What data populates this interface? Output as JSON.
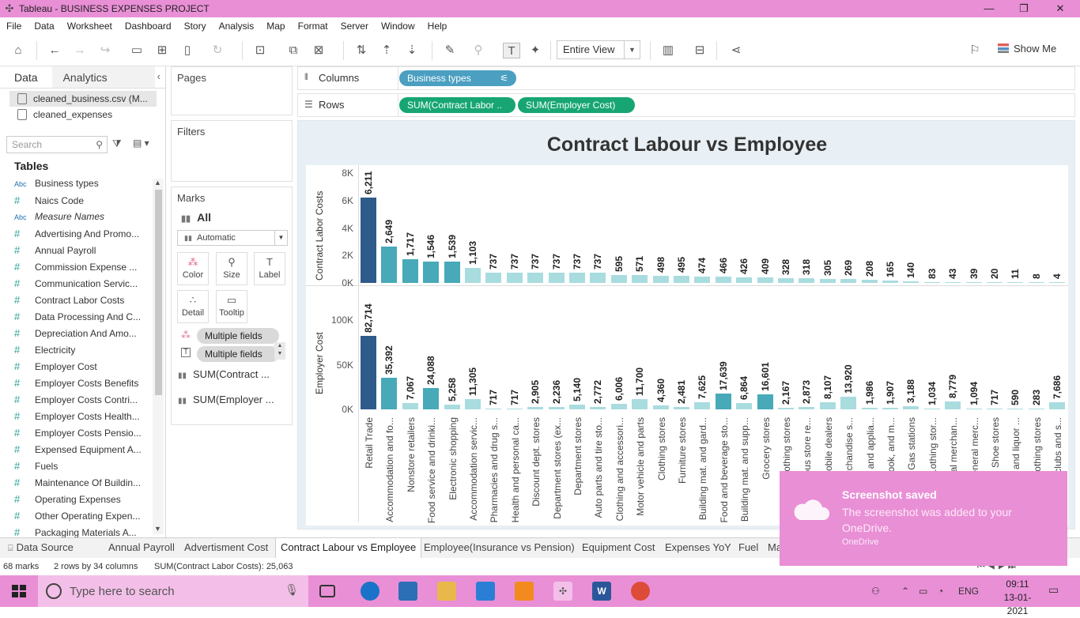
{
  "window": {
    "title": "Tableau - BUSINESS EXPENSES PROJECT"
  },
  "menu": [
    "File",
    "Data",
    "Worksheet",
    "Dashboard",
    "Story",
    "Analysis",
    "Map",
    "Format",
    "Server",
    "Window",
    "Help"
  ],
  "toolbar": {
    "fit_label": "Entire View",
    "show_me_label": "Show Me"
  },
  "data_panel": {
    "tab_data": "Data",
    "tab_analytics": "Analytics",
    "datasources": [
      "cleaned_business.csv (M...",
      "cleaned_expenses"
    ],
    "search_placeholder": "Search",
    "tables_heading": "Tables",
    "fields": [
      {
        "type": "Abc",
        "name": "Business types"
      },
      {
        "type": "#",
        "name": "Naics Code"
      },
      {
        "type": "Abc",
        "name": "Measure Names"
      },
      {
        "type": "#",
        "name": "Advertising And Promo..."
      },
      {
        "type": "#",
        "name": "Annual Payroll"
      },
      {
        "type": "#",
        "name": "Commission Expense ..."
      },
      {
        "type": "#",
        "name": "Communication Servic..."
      },
      {
        "type": "#",
        "name": "Contract Labor Costs"
      },
      {
        "type": "#",
        "name": "Data Processing And C..."
      },
      {
        "type": "#",
        "name": "Depreciation And Amo..."
      },
      {
        "type": "#",
        "name": "Electricity"
      },
      {
        "type": "#",
        "name": "Employer Cost"
      },
      {
        "type": "#",
        "name": "Employer Costs Benefits"
      },
      {
        "type": "#",
        "name": "Employer Costs Contri..."
      },
      {
        "type": "#",
        "name": "Employer Costs Health..."
      },
      {
        "type": "#",
        "name": "Employer Costs Pensio..."
      },
      {
        "type": "#",
        "name": "Expensed Equipment A..."
      },
      {
        "type": "#",
        "name": "Fuels"
      },
      {
        "type": "#",
        "name": "Maintenance Of Buildin..."
      },
      {
        "type": "#",
        "name": "Operating Expenses"
      },
      {
        "type": "#",
        "name": "Other Operating Expen..."
      },
      {
        "type": "#",
        "name": "Packaging Materials A..."
      }
    ]
  },
  "cards": {
    "pages": "Pages",
    "filters": "Filters",
    "marks": "Marks",
    "marks_all": "All",
    "mark_type": "Automatic",
    "buttons": [
      "Color",
      "Size",
      "Label",
      "Detail",
      "Tooltip"
    ],
    "pills": [
      "Multiple fields",
      "Multiple fields"
    ],
    "mark_fields": [
      "SUM(Contract ...",
      "SUM(Employer ..."
    ]
  },
  "shelves": {
    "columns_label": "Columns",
    "rows_label": "Rows",
    "columns_pill": "Business types",
    "rows_pills": [
      "SUM(Contract Labor ..",
      "SUM(Employer Cost)"
    ]
  },
  "chart_data": {
    "type": "bar",
    "title": "Contract Labour vs Employee",
    "categories": [
      "Retail Trade",
      "Accommodation and fo...",
      "Nonstore retailers",
      "Food service and drinki...",
      "Electronic shopping",
      "Accommodation servic...",
      "Pharmacies and drug s...",
      "Health and personal ca...",
      "Discount dept. stores",
      "Department stores (ex...",
      "Department stores",
      "Auto parts and tire sto...",
      "Clothing and accessori...",
      "Motor vehicle and parts",
      "Clothing stores",
      "Furniture stores",
      "Building mat. and gard...",
      "Food and beverage sto...",
      "Building mat. and supp...",
      "Grocery stores",
      "...othing stores",
      "...ous store re...",
      "...obile dealers",
      "...rchandise s...",
      "... and applia...",
      "...ook, and m...",
      "Gas stations",
      "...othing stor...",
      "...eral merchan...",
      "...eneral merc...",
      "Shoe stores",
      "... and liquor ...",
      "...othing stores",
      "... clubs and s..."
    ],
    "series": [
      {
        "name": "Contract Labor Costs",
        "ylabel": "Contract Labor Costs",
        "yticks": [
          "8K",
          "6K",
          "4K",
          "2K",
          "0K"
        ],
        "ylim": [
          0,
          8000
        ],
        "labels": [
          "6,211",
          "2,649",
          "1,717",
          "1,546",
          "1,539",
          "1,103",
          "737",
          "737",
          "737",
          "737",
          "737",
          "737",
          "595",
          "571",
          "498",
          "495",
          "474",
          "466",
          "426",
          "409",
          "328",
          "318",
          "305",
          "269",
          "208",
          "165",
          "140",
          "83",
          "43",
          "39",
          "20",
          "11",
          "8",
          "4"
        ],
        "values": [
          6211,
          2649,
          1717,
          1546,
          1539,
          1103,
          737,
          737,
          737,
          737,
          737,
          737,
          595,
          571,
          498,
          495,
          474,
          466,
          426,
          409,
          328,
          318,
          305,
          269,
          208,
          165,
          140,
          83,
          43,
          39,
          20,
          11,
          8,
          4
        ]
      },
      {
        "name": "Employer Cost",
        "ylabel": "Employer Cost",
        "yticks": [
          "100K",
          "50K",
          "0K"
        ],
        "ylim": [
          0,
          110000
        ],
        "labels": [
          "82,714",
          "35,392",
          "7,067",
          "24,088",
          "5,258",
          "11,305",
          "717",
          "717",
          "2,905",
          "2,236",
          "5,140",
          "2,772",
          "6,006",
          "11,700",
          "4,360",
          "2,481",
          "7,625",
          "17,639",
          "6,864",
          "16,601",
          "2,167",
          "2,873",
          "8,107",
          "13,920",
          "1,986",
          "1,907",
          "3,188",
          "1,034",
          "8,779",
          "1,094",
          "717",
          "590",
          "283",
          "7,686"
        ],
        "values": [
          82714,
          35392,
          7067,
          24088,
          5258,
          11305,
          717,
          717,
          2905,
          2236,
          5140,
          2772,
          6006,
          11700,
          4360,
          2481,
          7625,
          17639,
          6864,
          16601,
          2167,
          2873,
          8107,
          13920,
          1986,
          1907,
          3188,
          1034,
          8779,
          1094,
          717,
          590,
          283,
          7686
        ]
      }
    ],
    "colors": {
      "dark": "#2e5b8a",
      "mid": "#48a9b8",
      "light": "#a9dcdf"
    }
  },
  "sheet_tabs": [
    "Data Source",
    "Annual Payroll",
    "Advertisment Cost",
    "Contract Labour vs Employee",
    "Employee(Insurance vs Pension)",
    "Equipment Cost",
    "Expenses YoY",
    "Fuel",
    "Ma"
  ],
  "status": {
    "marks": "68 marks",
    "dims": "2 rows by 34 columns",
    "sum": "SUM(Contract Labor Costs): 25,063"
  },
  "toast": {
    "title": "Screenshot saved",
    "message": "The screenshot was added to your OneDrive.",
    "source": "OneDrive"
  },
  "taskbar": {
    "search_placeholder": "Type here to search",
    "lang": "ENG",
    "time": "09:11",
    "date": "13-01-2021"
  }
}
